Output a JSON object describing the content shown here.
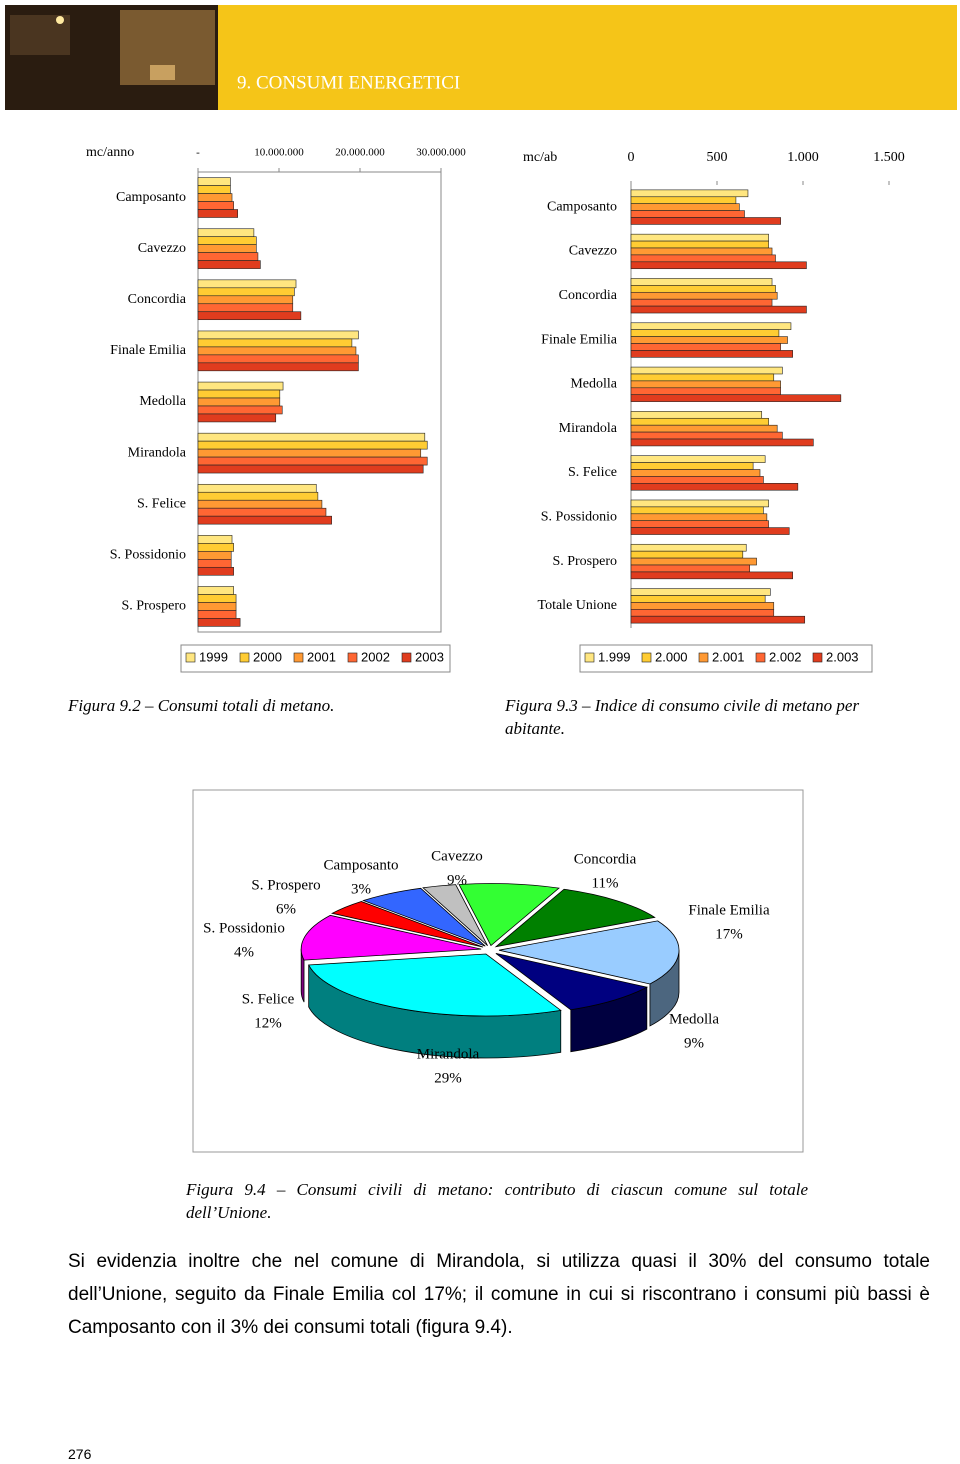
{
  "header": {
    "title": "9. CONSUMI ENERGETICI"
  },
  "chart_data": [
    {
      "type": "bar",
      "orientation": "horizontal",
      "axis_label": "mc/anno",
      "categories": [
        "Camposanto",
        "Cavezzo",
        "Concordia",
        "Finale Emilia",
        "Medolla",
        "Mirandola",
        "S. Felice",
        "S. Possidonio",
        "S. Prospero"
      ],
      "series": [
        {
          "name": "1999",
          "color": "#ffe680",
          "values": [
            4000000,
            6900000,
            12100000,
            19800000,
            10500000,
            28000000,
            14600000,
            4200000,
            4400000
          ]
        },
        {
          "name": "2000",
          "color": "#ffcc33",
          "values": [
            4000000,
            7200000,
            11900000,
            19000000,
            10100000,
            28300000,
            14800000,
            4400000,
            4700000
          ]
        },
        {
          "name": "2001",
          "color": "#ff9933",
          "values": [
            4200000,
            7200000,
            11700000,
            19500000,
            10100000,
            27500000,
            15300000,
            4100000,
            4700000
          ]
        },
        {
          "name": "2002",
          "color": "#ff6633",
          "values": [
            4400000,
            7400000,
            11700000,
            19800000,
            10400000,
            28300000,
            15800000,
            4100000,
            4700000
          ]
        },
        {
          "name": "2003",
          "color": "#e03c1e",
          "values": [
            4900000,
            7700000,
            12700000,
            19800000,
            9600000,
            27800000,
            16500000,
            4400000,
            5200000
          ]
        }
      ],
      "xlim": [
        0,
        30000000
      ],
      "xticks": [
        {
          "value": 0,
          "label": "-"
        },
        {
          "value": 10000000,
          "label": "10.000.000"
        },
        {
          "value": 20000000,
          "label": "20.000.000"
        },
        {
          "value": 30000000,
          "label": "30.000.000"
        }
      ],
      "caption": "Figura 9.2 – Consumi totali di metano."
    },
    {
      "type": "bar",
      "orientation": "horizontal",
      "axis_label": "mc/ab",
      "categories": [
        "Camposanto",
        "Cavezzo",
        "Concordia",
        "Finale Emilia",
        "Medolla",
        "Mirandola",
        "S. Felice",
        "S. Possidonio",
        "S. Prospero",
        "Totale Unione"
      ],
      "series": [
        {
          "name": "1.999",
          "color": "#ffe680",
          "values": [
            680,
            800,
            820,
            930,
            880,
            760,
            780,
            800,
            670,
            810
          ]
        },
        {
          "name": "2.000",
          "color": "#ffcc33",
          "values": [
            610,
            800,
            840,
            860,
            830,
            800,
            710,
            770,
            650,
            780
          ]
        },
        {
          "name": "2.001",
          "color": "#ff9933",
          "values": [
            630,
            820,
            850,
            910,
            870,
            850,
            750,
            790,
            730,
            830
          ]
        },
        {
          "name": "2.002",
          "color": "#ff6633",
          "values": [
            660,
            840,
            820,
            870,
            870,
            880,
            770,
            800,
            690,
            830
          ]
        },
        {
          "name": "2.003",
          "color": "#e03c1e",
          "values": [
            870,
            1020,
            1020,
            940,
            1220,
            1060,
            970,
            920,
            940,
            1010
          ]
        }
      ],
      "xlim": [
        0,
        1500
      ],
      "xticks": [
        0,
        500,
        {
          "value": 1000,
          "label": "1.000"
        },
        {
          "value": 1500,
          "label": "1.500"
        }
      ],
      "caption": "Figura 9.3 – Indice di consumo civile di metano per abitante."
    },
    {
      "type": "pie",
      "categories": [
        "Camposanto",
        "Cavezzo",
        "Concordia",
        "Finale Emilia",
        "Medolla",
        "Mirandola",
        "S. Felice",
        "S. Possidonio",
        "S. Prospero"
      ],
      "values": [
        3,
        9,
        11,
        17,
        9,
        29,
        12,
        4,
        6
      ],
      "value_labels": [
        "3%",
        "9%",
        "11%",
        "17%",
        "9%",
        "29%",
        "12%",
        "4%",
        "6%"
      ],
      "colors": [
        "#c0c0c0",
        "#33ff33",
        "#008000",
        "#99ccff",
        "#000080",
        "#00ffff",
        "#ff00ff",
        "#ff0000",
        "#3366ff"
      ],
      "caption": "Figura 9.4 – Consumi civili di metano: contributo di ciascun comune sul totale dell’Unione."
    }
  ],
  "paragraph": "Si evidenzia inoltre che nel comune di Mirandola, si utilizza quasi il 30% del consumo totale dell’Unione, seguito da Finale Emilia col 17%; il comune in cui si riscontrano i consumi più bassi è Camposanto con il 3% dei consumi totali (figura 9.4).",
  "page_number": "276"
}
